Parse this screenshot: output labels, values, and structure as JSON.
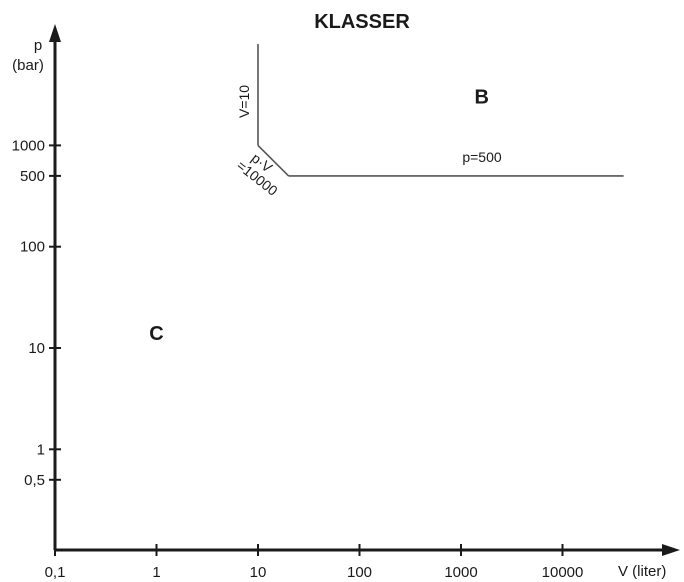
{
  "title": "KLASSER",
  "y_axis": {
    "label_line1": "p",
    "label_line2": "(bar)",
    "ticks": [
      {
        "value": 0.5,
        "label": "0,5"
      },
      {
        "value": 1,
        "label": "1"
      },
      {
        "value": 10,
        "label": "10"
      },
      {
        "value": 100,
        "label": "100"
      },
      {
        "value": 500,
        "label": "500"
      },
      {
        "value": 1000,
        "label": "1000"
      }
    ]
  },
  "x_axis": {
    "label": "V (liter)",
    "ticks": [
      {
        "value": 0.1,
        "label": "0,1"
      },
      {
        "value": 1,
        "label": "1"
      },
      {
        "value": 10,
        "label": "10"
      },
      {
        "value": 100,
        "label": "100"
      },
      {
        "value": 1000,
        "label": "1000"
      },
      {
        "value": 10000,
        "label": "10000"
      }
    ]
  },
  "regions": [
    {
      "id": "b",
      "label": "B",
      "V": 1600,
      "p": 2600
    },
    {
      "id": "c",
      "label": "C",
      "V": 1.0,
      "p": 12
    }
  ],
  "boundaries": [
    {
      "id": "v10",
      "label": "V=10",
      "points": [
        [
          10,
          10000
        ],
        [
          10,
          1000
        ]
      ]
    },
    {
      "id": "pv",
      "label_line1": "p·V",
      "label_line2": "=10000",
      "points": [
        [
          10,
          1000
        ],
        [
          20,
          500
        ]
      ]
    },
    {
      "id": "p500",
      "label": "p=500",
      "points": [
        [
          20,
          500
        ],
        [
          40000,
          500
        ]
      ]
    }
  ],
  "scale": {
    "x": "log",
    "y": "log"
  },
  "colors": {
    "axis": "#1a1a1a",
    "boundary": "#555555",
    "text": "#1a1a1a"
  }
}
